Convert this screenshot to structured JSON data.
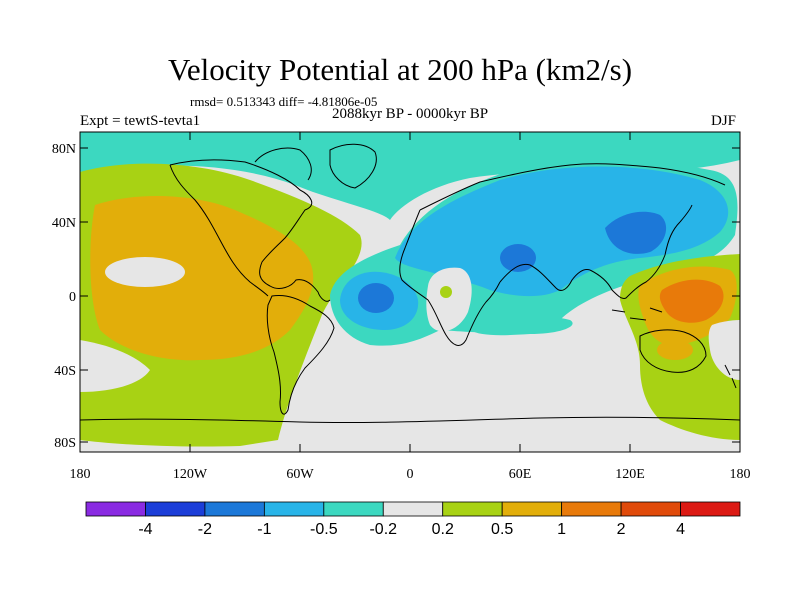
{
  "title": "Velocity Potential at 200 hPa (km2/s)",
  "stats": "rmsd= 0.513343 diff= -4.81806e-05",
  "period": "2088kyr BP - 0000kyr BP",
  "experiment": "Expt = tewtS-tevta1",
  "season": "DJF",
  "axes": {
    "x_ticks": [
      "180",
      "120W",
      "60W",
      "0",
      "60E",
      "120E",
      "180"
    ],
    "y_ticks": [
      "80N",
      "40N",
      "0",
      "40S",
      "80S"
    ]
  },
  "colorbar": {
    "labels": [
      "-4",
      "-2",
      "-1",
      "-0.5",
      "-0.2",
      "0.2",
      "0.5",
      "1",
      "2",
      "4"
    ],
    "colors": [
      "#8a2be2",
      "#1c3ed8",
      "#1c78d8",
      "#28b4e8",
      "#3cd8c0",
      "#e6e6e6",
      "#a8d214",
      "#e2ae0a",
      "#e87a0a",
      "#e04a0a",
      "#dc1a14"
    ]
  },
  "palette": {
    "land": "#e6e6e6",
    "cyan": "#3cd8c0",
    "lightblue": "#28b4e8",
    "blue": "#1c78d8",
    "green": "#a8d214",
    "orange": "#e2ae0a",
    "darkorange": "#e87a0a"
  }
}
